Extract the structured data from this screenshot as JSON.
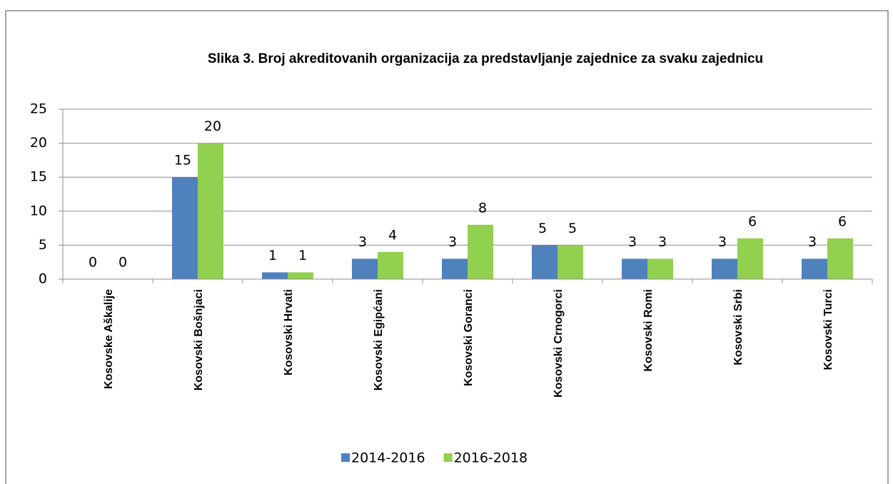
{
  "chart_data": {
    "type": "bar",
    "title": "Slika 3. Broj akreditovanih organizacija za predstavljanje zajednice za svaku zajednicu",
    "categories": [
      "Kosovske Aškalije",
      "Kosovski Bošnjaci",
      "Kosovski Hrvati",
      "Kosovski Egipćani",
      "Kosovski Goranci",
      "Kosovski Crnogorci",
      "Kosovski Romi",
      "Kosovski Srbi",
      "Kosovski Turci"
    ],
    "series": [
      {
        "name": "2014-2016",
        "color": "#4f81bd",
        "values": [
          0,
          15,
          1,
          3,
          3,
          5,
          3,
          3,
          3
        ]
      },
      {
        "name": "2016-2018",
        "color": "#92d050",
        "values": [
          0,
          20,
          1,
          4,
          8,
          5,
          3,
          6,
          6
        ]
      }
    ],
    "ylim": [
      0,
      25
    ],
    "yticks": [
      0,
      5,
      10,
      15,
      20,
      25
    ],
    "grid": true,
    "legend": "bottom"
  }
}
